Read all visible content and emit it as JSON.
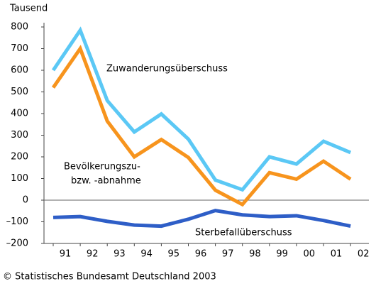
{
  "chart_data": {
    "type": "line",
    "unit_label": "Tausend",
    "categories": [
      "91",
      "92",
      "93",
      "94",
      "95",
      "96",
      "97",
      "98",
      "99",
      "00",
      "01",
      "02"
    ],
    "series": [
      {
        "label": [
          "Zuwanderungsüberschuss"
        ],
        "color": "#5bc8f5",
        "values": [
          600,
          785,
          460,
          315,
          398,
          282,
          93,
          48,
          200,
          167,
          272,
          220
        ]
      },
      {
        "label": [
          "Bevölkerungszu-",
          "bzw. -abnahme"
        ],
        "color": "#f7941d",
        "values": [
          520,
          700,
          365,
          200,
          280,
          197,
          46,
          -20,
          127,
          97,
          180,
          97
        ]
      },
      {
        "label": [
          "Sterbefallüberschuss"
        ],
        "color": "#2e5ec7",
        "values": [
          -80,
          -76,
          -98,
          -115,
          -120,
          -88,
          -48,
          -68,
          -76,
          -72,
          -94,
          -120
        ]
      }
    ],
    "ylim": [
      -200,
      800
    ],
    "yticks": [
      800,
      700,
      600,
      500,
      400,
      300,
      200,
      100,
      0,
      {
        "value": -100,
        "label": "–100"
      },
      {
        "value": -200,
        "label": "–200"
      }
    ],
    "source": "© Statistisches Bundesamt Deutschland 2003"
  }
}
